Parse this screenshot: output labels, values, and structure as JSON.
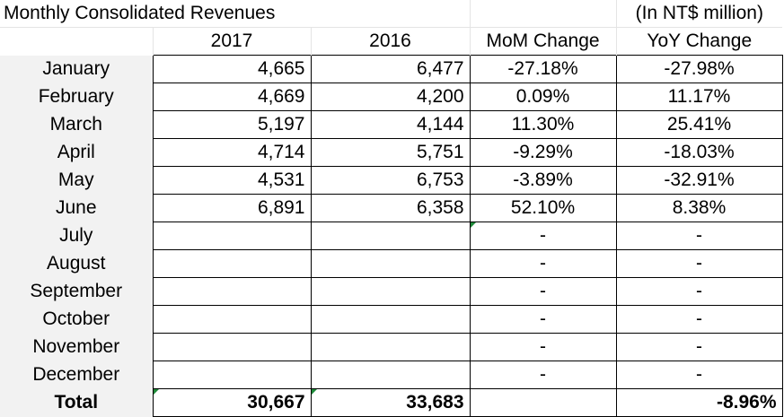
{
  "title": "Monthly Consolidated Revenues",
  "unit_note": "(In NT$ million)",
  "headers": [
    "2017",
    "2016",
    "MoM Change",
    "YoY Change"
  ],
  "rows": [
    {
      "month": "January",
      "y2017": "4,665",
      "y2016": "6,477",
      "mom": "-27.18%",
      "yoy": "-27.98%"
    },
    {
      "month": "February",
      "y2017": "4,669",
      "y2016": "4,200",
      "mom": "0.09%",
      "yoy": "11.17%"
    },
    {
      "month": "March",
      "y2017": "5,197",
      "y2016": "4,144",
      "mom": "11.30%",
      "yoy": "25.41%"
    },
    {
      "month": "April",
      "y2017": "4,714",
      "y2016": "5,751",
      "mom": "-9.29%",
      "yoy": "-18.03%"
    },
    {
      "month": "May",
      "y2017": "4,531",
      "y2016": "6,753",
      "mom": "-3.89%",
      "yoy": "-32.91%"
    },
    {
      "month": "June",
      "y2017": "6,891",
      "y2016": "6,358",
      "mom": "52.10%",
      "yoy": "8.38%"
    },
    {
      "month": "July",
      "y2017": "",
      "y2016": "",
      "mom": "-",
      "yoy": "-"
    },
    {
      "month": "August",
      "y2017": "",
      "y2016": "",
      "mom": "-",
      "yoy": "-"
    },
    {
      "month": "September",
      "y2017": "",
      "y2016": "",
      "mom": "-",
      "yoy": "-"
    },
    {
      "month": "October",
      "y2017": "",
      "y2016": "",
      "mom": "-",
      "yoy": "-"
    },
    {
      "month": "November",
      "y2017": "",
      "y2016": "",
      "mom": "-",
      "yoy": "-"
    },
    {
      "month": "December",
      "y2017": "",
      "y2016": "",
      "mom": "-",
      "yoy": "-"
    }
  ],
  "total": {
    "label": "Total",
    "y2017": "30,667",
    "y2016": "33,683",
    "mom": "",
    "yoy": "-8.96%"
  },
  "colors": {
    "note_triangle": "#1f8a3a",
    "month_bg": "#f2f2f2",
    "gridline": "#e4e4e4"
  }
}
